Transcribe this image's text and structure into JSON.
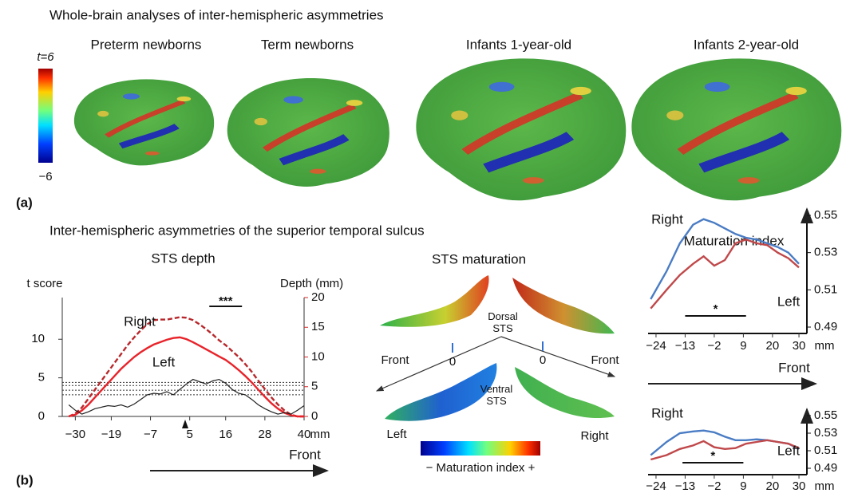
{
  "panel_a": {
    "label": "(a)",
    "title": "Whole-brain analyses of inter-hemispheric asymmetries",
    "colorbar": {
      "max_label": "t=6",
      "min_label": "−6"
    },
    "brains": [
      "Preterm newborns",
      "Term newborns",
      "Infants 1-year-old",
      "Infants 2-year-old"
    ]
  },
  "panel_b": {
    "label": "(b)",
    "title": "Inter-hemispheric asymmetries of the superior temporal sulcus",
    "sts_maturation": {
      "title": "STS maturation",
      "dorsal": "Dorsal STS",
      "ventral": "Ventral STS",
      "front_left": "Front",
      "front_right": "Front",
      "zero_left": "0",
      "zero_right": "0",
      "left": "Left",
      "right": "Right",
      "colorbar_label": "− Maturation index +"
    }
  },
  "chart_data": [
    {
      "type": "line",
      "title": "STS depth",
      "y_label": "t score",
      "y2_label": "Depth (mm)",
      "x_label": "mm",
      "direction_label": "Front",
      "xlim": [
        -34,
        40
      ],
      "xticks": [
        {
          "value": -30,
          "label": "−30"
        },
        {
          "value": -19,
          "label": "−19"
        },
        {
          "value": -7,
          "label": "−7"
        },
        5,
        16,
        28,
        40
      ],
      "ylim": [
        0,
        15.4
      ],
      "yticks": [
        0,
        5,
        10
      ],
      "y2lim": [
        0,
        20
      ],
      "y2ticks": [
        0,
        5,
        10,
        15,
        20
      ],
      "y2_color": "#d42a2a",
      "reference_lines": [
        2.8,
        3.4,
        4.0,
        4.4
      ],
      "significance": {
        "label": "***",
        "x": [
          11,
          21
        ]
      },
      "x": [
        -32,
        -30,
        -28,
        -26,
        -24,
        -22,
        -20,
        -18,
        -16,
        -14,
        -12,
        -10,
        -8,
        -6,
        -4,
        -2,
        0,
        2,
        4,
        6,
        8,
        10,
        12,
        14,
        16,
        18,
        20,
        22,
        24,
        26,
        28,
        30,
        32,
        34,
        36,
        38,
        40
      ],
      "series": [
        {
          "name": "Right",
          "color": "#b8282c",
          "dashed": true,
          "axis": "y2",
          "values": [
            0,
            0.5,
            1.5,
            3,
            4.5,
            6,
            7.5,
            9,
            10.5,
            12,
            13.3,
            14.5,
            15.5,
            16.2,
            16.3,
            16.3,
            16.5,
            16.7,
            16.6,
            16.2,
            15.5,
            14.7,
            13.8,
            12.8,
            12.0,
            11.0,
            10.0,
            8.8,
            7.5,
            6.0,
            4.6,
            3.2,
            2.0,
            1.0,
            0.3,
            0,
            0
          ]
        },
        {
          "name": "Left",
          "color": "#e8232a",
          "dashed": false,
          "axis": "y2",
          "values": [
            0,
            0.3,
            1,
            2,
            3.2,
            4.4,
            5.6,
            6.8,
            8,
            9,
            10,
            10.8,
            11.5,
            12.1,
            12.5,
            12.9,
            13.2,
            13.3,
            13.0,
            12.5,
            11.9,
            11.3,
            10.7,
            10.1,
            9.5,
            8.7,
            7.8,
            6.8,
            5.7,
            4.5,
            3.3,
            2.2,
            1.3,
            0.6,
            0.2,
            0,
            0
          ]
        },
        {
          "color": "#222222",
          "dashed": false,
          "values": [
            1.5,
            0.8,
            0.3,
            0.6,
            1.0,
            1.2,
            1.4,
            1.3,
            1.5,
            1.2,
            1.6,
            2.2,
            2.8,
            3.0,
            2.9,
            3.2,
            2.8,
            3.5,
            4.2,
            4.8,
            4.5,
            4.2,
            4.6,
            4.8,
            4.3,
            3.5,
            3.0,
            2.8,
            2.2,
            1.5,
            1.0,
            0.6,
            0.3,
            0.5,
            0.3,
            0.8,
            1.4
          ]
        }
      ]
    },
    {
      "type": "line",
      "title": "Maturation index",
      "x_label": "mm",
      "direction_label": "Front",
      "xlim": [
        -27,
        33
      ],
      "xticks": [
        {
          "value": -24,
          "label": "−24"
        },
        {
          "value": -13,
          "label": "−13"
        },
        {
          "value": -2,
          "label": "−2"
        },
        9,
        20,
        30
      ],
      "ylim": [
        0.49,
        0.55
      ],
      "yticks": [
        0.49,
        0.51,
        0.53,
        0.55
      ],
      "significance": {
        "label": "*",
        "x": [
          -13,
          10
        ]
      },
      "x": [
        -26,
        -20,
        -15,
        -10,
        -6,
        -2,
        2,
        6,
        10,
        14,
        18,
        22,
        26,
        30
      ],
      "series": [
        {
          "name": "Right",
          "color": "#4a7cc4",
          "values": [
            0.505,
            0.52,
            0.535,
            0.545,
            0.548,
            0.546,
            0.543,
            0.54,
            0.538,
            0.537,
            0.535,
            0.533,
            0.53,
            0.524
          ]
        },
        {
          "name": "Left",
          "color": "#c0484a",
          "values": [
            0.5,
            0.51,
            0.518,
            0.524,
            0.528,
            0.523,
            0.526,
            0.535,
            0.537,
            0.535,
            0.534,
            0.53,
            0.527,
            0.522
          ]
        }
      ]
    },
    {
      "type": "line",
      "x_label": "mm",
      "xlim": [
        -27,
        33
      ],
      "xticks": [
        {
          "value": -24,
          "label": "−24"
        },
        {
          "value": -13,
          "label": "−13"
        },
        {
          "value": -2,
          "label": "−2"
        },
        9,
        20,
        30
      ],
      "ylim": [
        0.49,
        0.55
      ],
      "yticks": [
        0.49,
        0.51,
        0.53,
        0.55
      ],
      "significance": {
        "label": "*",
        "x": [
          -14,
          9
        ]
      },
      "x": [
        -26,
        -20,
        -15,
        -10,
        -6,
        -2,
        2,
        6,
        10,
        14,
        18,
        22,
        26,
        30
      ],
      "series": [
        {
          "name": "Right",
          "color": "#4a7cc4",
          "values": [
            0.505,
            0.52,
            0.53,
            0.532,
            0.533,
            0.531,
            0.526,
            0.522,
            0.522,
            0.523,
            0.522,
            0.52,
            0.518,
            0.512
          ]
        },
        {
          "name": "Left",
          "color": "#c0484a",
          "values": [
            0.5,
            0.505,
            0.512,
            0.516,
            0.521,
            0.514,
            0.512,
            0.513,
            0.518,
            0.52,
            0.522,
            0.52,
            0.518,
            0.513
          ]
        }
      ]
    }
  ]
}
